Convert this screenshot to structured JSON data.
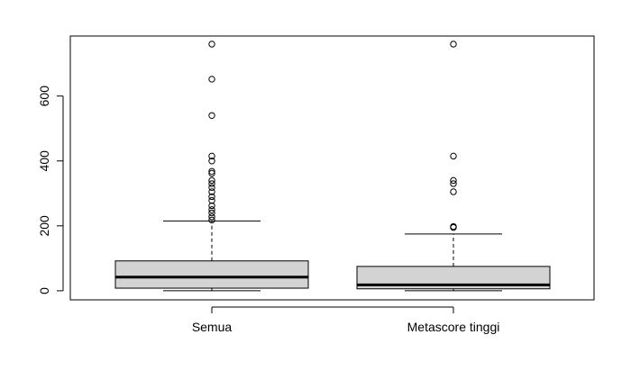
{
  "chart_data": {
    "type": "boxplot",
    "title": "",
    "xlabel": "",
    "ylabel": "",
    "ylim": [
      -28,
      785
    ],
    "y_ticks": [
      0,
      200,
      400,
      600
    ],
    "y_tick_labels": [
      "0",
      "200",
      "400",
      "600"
    ],
    "categories": [
      "Semua",
      "Metascore tinggi"
    ],
    "boxes": [
      {
        "name": "Semua",
        "whisker_low": 0,
        "q1": 8,
        "median": 42,
        "q3": 92,
        "whisker_high": 215,
        "outliers": [
          760,
          652,
          540,
          415,
          400,
          368,
          362,
          340,
          330,
          318,
          305,
          290,
          278,
          262,
          250,
          240,
          228,
          218
        ]
      },
      {
        "name": "Metascore tinggi",
        "whisker_low": 0,
        "q1": 6,
        "median": 18,
        "q3": 75,
        "whisker_high": 175,
        "outliers": [
          760,
          415,
          340,
          330,
          305,
          198,
          195
        ]
      }
    ],
    "colors": {
      "box_fill": "#d3d3d3",
      "stroke": "#000000",
      "background": "#ffffff"
    }
  }
}
